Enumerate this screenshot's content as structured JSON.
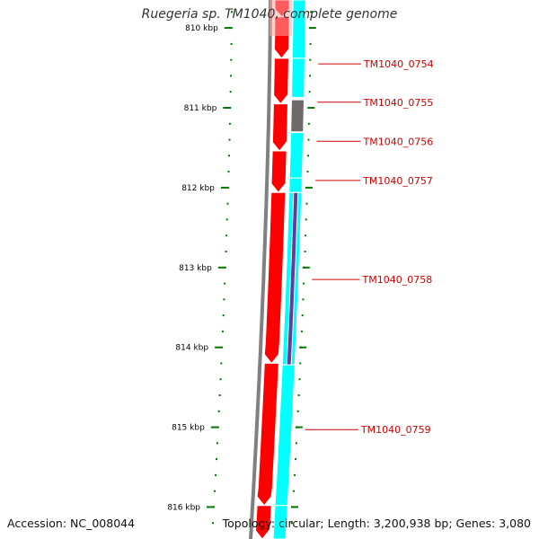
{
  "title": "Ruegeria sp. TM1040, complete genome",
  "footer": {
    "accession": "Accession: NC_008044",
    "summary": "Topology: circular; Length: 3,200,938 bp; Genes: 3,080"
  },
  "colors": {
    "forward_cds": "#ff0000",
    "reverse_cds": "#00ffff",
    "highlight_gene": "#6e6a6a",
    "highlight_gene_2": "#5e3fa0",
    "backbone": "#808080",
    "ticks": "#007700",
    "gene_labels": "#cc0000"
  },
  "ruler": {
    "unit": "kbp",
    "view_start_kbp": 809.65,
    "view_end_kbp": 816.4,
    "major_ticks": [
      {
        "kbp": 810,
        "label": "810 kbp"
      },
      {
        "kbp": 811,
        "label": "811 kbp"
      },
      {
        "kbp": 812,
        "label": "812 kbp"
      },
      {
        "kbp": 813,
        "label": "813 kbp"
      },
      {
        "kbp": 814,
        "label": "814 kbp"
      },
      {
        "kbp": 815,
        "label": "815 kbp"
      },
      {
        "kbp": 816,
        "label": "816 kbp"
      }
    ],
    "minor_step_kbp": 0.2
  },
  "tracks": {
    "forward": [
      {
        "start_kbp": 809.65,
        "end_kbp": 809.86
      },
      {
        "start_kbp": 809.86,
        "end_kbp": 810.38
      },
      {
        "start_kbp": 810.38,
        "end_kbp": 810.95
      },
      {
        "start_kbp": 810.95,
        "end_kbp": 811.54
      },
      {
        "start_kbp": 811.54,
        "end_kbp": 812.06
      },
      {
        "start_kbp": 812.06,
        "end_kbp": 814.2
      },
      {
        "start_kbp": 814.2,
        "end_kbp": 815.98
      },
      {
        "start_kbp": 815.98,
        "end_kbp": 816.4
      }
    ],
    "reverse": [
      {
        "start_kbp": 809.65,
        "end_kbp": 810.38,
        "color_key": "reverse_cds"
      },
      {
        "start_kbp": 810.38,
        "end_kbp": 810.87,
        "color_key": "reverse_cds"
      },
      {
        "start_kbp": 810.9,
        "end_kbp": 811.3,
        "color_key": "highlight_gene"
      },
      {
        "start_kbp": 811.31,
        "end_kbp": 811.88,
        "color_key": "reverse_cds"
      },
      {
        "start_kbp": 811.88,
        "end_kbp": 812.06,
        "color_key": "reverse_cds"
      },
      {
        "start_kbp": 812.06,
        "end_kbp": 814.22,
        "color_key": "reverse_cds"
      },
      {
        "start_kbp": 812.06,
        "end_kbp": 814.22,
        "color_key": "highlight_gene_2",
        "inner": true
      },
      {
        "start_kbp": 814.22,
        "end_kbp": 815.98,
        "color_key": "reverse_cds"
      },
      {
        "start_kbp": 815.98,
        "end_kbp": 816.4,
        "color_key": "reverse_cds"
      }
    ]
  },
  "gene_labels": [
    {
      "name": "TM1040_0754",
      "kbp": 810.45
    },
    {
      "name": "TM1040_0755",
      "kbp": 810.93
    },
    {
      "name": "TM1040_0756",
      "kbp": 811.42
    },
    {
      "name": "TM1040_0757",
      "kbp": 811.91
    },
    {
      "name": "TM1040_0758",
      "kbp": 813.15
    },
    {
      "name": "TM1040_0759",
      "kbp": 815.03
    }
  ]
}
